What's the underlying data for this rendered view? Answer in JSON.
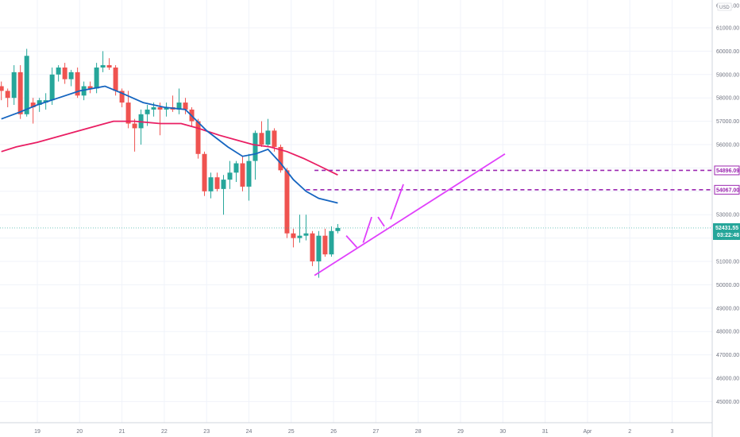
{
  "chart_data": {
    "type": "candlestick",
    "currency": "USD",
    "y_axis": {
      "ticks": [
        "45000.00",
        "46000.00",
        "47000.00",
        "48000.00",
        "49000.00",
        "50000.00",
        "51000.00",
        "52000.00",
        "53000.00",
        "54000.00",
        "55000.00",
        "56000.00",
        "57000.00",
        "58000.00",
        "59000.00",
        "60000.00",
        "61000.00"
      ],
      "ylim": [
        44500,
        62000
      ]
    },
    "x_axis": {
      "ticks": [
        "19",
        "20",
        "21",
        "22",
        "23",
        "24",
        "25",
        "26",
        "27",
        "28",
        "29",
        "30",
        "31",
        "Apr",
        "2",
        "3"
      ],
      "xlim": [
        18.15,
        34.1
      ]
    },
    "colors": {
      "up": "#26a69a",
      "down": "#ef5350",
      "ma_fast": "#1565c0",
      "ma_slow": "#e91e63",
      "drawing": "#e040fb",
      "levels": "#9c27b0"
    },
    "candles": [
      [
        18.15,
        58500,
        58700,
        57900,
        58300
      ],
      [
        18.3,
        58300,
        58400,
        57600,
        58000
      ],
      [
        18.45,
        58000,
        59400,
        57700,
        59100
      ],
      [
        18.6,
        59100,
        59400,
        57100,
        57300
      ],
      [
        18.75,
        57300,
        60100,
        57200,
        59800
      ],
      [
        18.9,
        57800,
        58000,
        56900,
        57600
      ],
      [
        19.05,
        57700,
        58000,
        57400,
        57900
      ],
      [
        19.2,
        57800,
        58200,
        57500,
        57900
      ],
      [
        19.35,
        57900,
        59300,
        57700,
        59000
      ],
      [
        19.5,
        59000,
        59400,
        58700,
        59300
      ],
      [
        19.65,
        59300,
        59500,
        58600,
        58800
      ],
      [
        19.8,
        58800,
        59200,
        58500,
        59100
      ],
      [
        19.95,
        59100,
        59300,
        58000,
        58100
      ],
      [
        20.1,
        58100,
        58700,
        57900,
        58500
      ],
      [
        20.25,
        58500,
        58700,
        58200,
        58400
      ],
      [
        20.4,
        58400,
        59500,
        58200,
        59300
      ],
      [
        20.55,
        59300,
        60000,
        59100,
        59400
      ],
      [
        20.7,
        59400,
        59700,
        59200,
        59300
      ],
      [
        20.85,
        59300,
        59400,
        58100,
        58300
      ],
      [
        21.0,
        58300,
        58400,
        57600,
        57800
      ],
      [
        21.15,
        57800,
        58300,
        56700,
        56900
      ],
      [
        21.3,
        56900,
        57100,
        55700,
        56700
      ],
      [
        21.45,
        56700,
        57500,
        56000,
        57300
      ],
      [
        21.6,
        57300,
        57700,
        56800,
        57500
      ],
      [
        21.75,
        57500,
        57800,
        57200,
        57600
      ],
      [
        21.9,
        57600,
        57800,
        56400,
        57500
      ],
      [
        22.05,
        57500,
        57800,
        57200,
        57600
      ],
      [
        22.2,
        57600,
        58100,
        57400,
        57500
      ],
      [
        22.35,
        57500,
        58400,
        57300,
        57800
      ],
      [
        22.5,
        57800,
        58000,
        57300,
        57500
      ],
      [
        22.65,
        57500,
        57600,
        56800,
        57000
      ],
      [
        22.8,
        57000,
        57100,
        55400,
        55600
      ],
      [
        22.95,
        55600,
        55700,
        53800,
        54000
      ],
      [
        23.1,
        54000,
        54800,
        53700,
        54600
      ],
      [
        23.25,
        54600,
        54800,
        54000,
        54100
      ],
      [
        23.4,
        54100,
        54700,
        53000,
        54500
      ],
      [
        23.55,
        54500,
        55300,
        54100,
        54800
      ],
      [
        23.7,
        54800,
        55300,
        54400,
        55200
      ],
      [
        23.85,
        55200,
        55500,
        54000,
        54200
      ],
      [
        24.0,
        54200,
        55600,
        53600,
        55300
      ],
      [
        24.15,
        55300,
        56600,
        54500,
        56500
      ],
      [
        24.3,
        56500,
        57000,
        55900,
        56000
      ],
      [
        24.45,
        56000,
        57100,
        55900,
        56600
      ],
      [
        24.6,
        56600,
        56700,
        55700,
        55900
      ],
      [
        24.75,
        55900,
        56000,
        54800,
        54900
      ],
      [
        24.9,
        54900,
        55000,
        52000,
        52200
      ],
      [
        25.05,
        52200,
        52400,
        51600,
        52000
      ],
      [
        25.2,
        52000,
        53000,
        51800,
        52100
      ],
      [
        25.35,
        52100,
        53000,
        51900,
        52200
      ],
      [
        25.5,
        52200,
        52300,
        50800,
        51000
      ],
      [
        25.65,
        51000,
        52300,
        50300,
        52100
      ],
      [
        25.8,
        52100,
        52400,
        51200,
        51300
      ],
      [
        25.95,
        51300,
        52500,
        51200,
        52300
      ],
      [
        26.1,
        52300,
        52600,
        52200,
        52431
      ]
    ],
    "ma_fast": [
      [
        18.15,
        57100
      ],
      [
        18.6,
        57400
      ],
      [
        19.0,
        57700
      ],
      [
        19.5,
        58000
      ],
      [
        20.0,
        58300
      ],
      [
        20.6,
        58500
      ],
      [
        21.0,
        58200
      ],
      [
        21.5,
        57800
      ],
      [
        22.0,
        57600
      ],
      [
        22.5,
        57500
      ],
      [
        23.0,
        56600
      ],
      [
        23.5,
        55900
      ],
      [
        23.85,
        55500
      ],
      [
        24.15,
        55600
      ],
      [
        24.45,
        55800
      ],
      [
        24.75,
        55200
      ],
      [
        25.05,
        54500
      ],
      [
        25.35,
        54000
      ],
      [
        25.65,
        53700
      ],
      [
        26.1,
        53500
      ]
    ],
    "ma_slow": [
      [
        18.15,
        55700
      ],
      [
        18.5,
        55900
      ],
      [
        19.0,
        56100
      ],
      [
        19.6,
        56400
      ],
      [
        20.2,
        56700
      ],
      [
        20.8,
        57000
      ],
      [
        21.3,
        57000
      ],
      [
        21.9,
        56900
      ],
      [
        22.4,
        56900
      ],
      [
        22.8,
        56700
      ],
      [
        23.3,
        56400
      ],
      [
        23.7,
        56200
      ],
      [
        24.1,
        56000
      ],
      [
        24.5,
        55900
      ],
      [
        24.9,
        55700
      ],
      [
        25.3,
        55400
      ],
      [
        25.65,
        55100
      ],
      [
        26.1,
        54700
      ]
    ],
    "trendline": [
      [
        25.55,
        50400
      ],
      [
        30.05,
        55600
      ]
    ],
    "projection": [
      [
        26.3,
        52100
      ],
      [
        26.55,
        51600
      ],
      [
        26.7,
        51800
      ],
      [
        26.9,
        52900
      ],
      [
        27.05,
        52900
      ],
      [
        27.2,
        52500
      ],
      [
        27.35,
        52800
      ],
      [
        27.65,
        54300
      ]
    ],
    "levels": [
      {
        "value": 54896,
        "label": "54896.09",
        "start_x": 25.55
      },
      {
        "value": 54067,
        "label": "54067.00",
        "start_x": 25.35
      }
    ],
    "last_price": {
      "value": 52431,
      "label": "52431.55",
      "countdown": "03:22:48"
    },
    "top_tick_label": "62000.00"
  }
}
